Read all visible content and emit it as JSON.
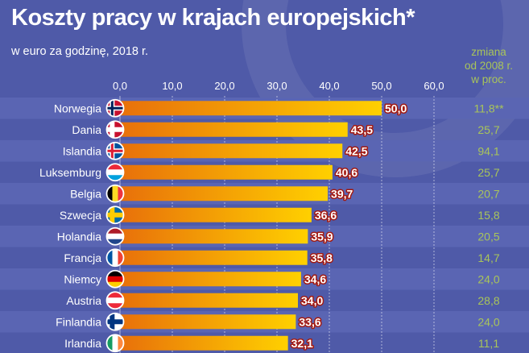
{
  "chart_data": {
    "type": "bar",
    "orientation": "horizontal",
    "title": "Koszty pracy w krajach europejskich*",
    "subtitle": "w euro za godzinę, 2018 r.",
    "xlim": [
      0,
      60
    ],
    "ticks": [
      "0,0",
      "10,0",
      "20,0",
      "30,0",
      "40,0",
      "50,0",
      "60,0"
    ],
    "grid": true,
    "categories": [
      "Norwegia",
      "Dania",
      "Islandia",
      "Luksemburg",
      "Belgia",
      "Szwecja",
      "Holandia",
      "Francja",
      "Niemcy",
      "Austria",
      "Finlandia",
      "Irlandia"
    ],
    "values": [
      50.0,
      43.5,
      42.5,
      40.6,
      39.7,
      36.6,
      35.9,
      35.8,
      34.6,
      34.0,
      33.6,
      32.1
    ],
    "value_labels": [
      "50,0",
      "43,5",
      "42,5",
      "40,6",
      "39,7",
      "36,6",
      "35,9",
      "35,8",
      "34,6",
      "34,0",
      "33,6",
      "32,1"
    ],
    "change_header": [
      "zmiana",
      "od 2008 r.",
      "w proc."
    ],
    "change_values": [
      "11,8**",
      "25,7",
      "94,1",
      "25,7",
      "20,7",
      "15,8",
      "20,5",
      "14,7",
      "24,0",
      "28,8",
      "24,0",
      "11,1"
    ]
  },
  "flags": [
    "norway",
    "denmark",
    "iceland",
    "luxembourg",
    "belgium",
    "sweden",
    "netherlands",
    "france",
    "germany",
    "austria",
    "finland",
    "ireland"
  ],
  "colors": {
    "background": "#4f5aa8",
    "row_band": "#5a65b3",
    "bar_start": "#e8700a",
    "bar_end": "#ffd000",
    "change_text": "#a9c55a",
    "value_label_bg": "#a31a12"
  }
}
